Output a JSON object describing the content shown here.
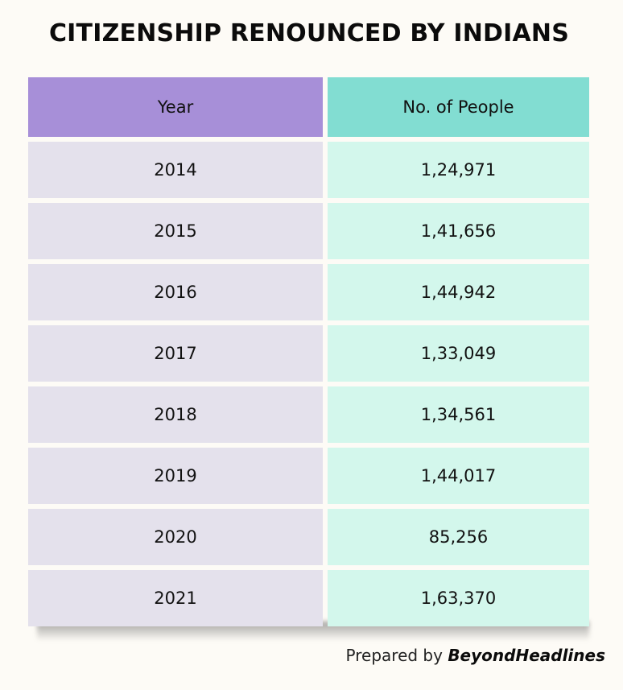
{
  "title": "CITIZENSHIP RENOUNCED BY INDIANS",
  "footer": {
    "prefix": "Prepared by",
    "brand": "BeyondHeadlines"
  },
  "colors": {
    "year_header": "#a78fd8",
    "people_header": "#82ddd2",
    "year_cell": "#e4e1ec",
    "people_cell": "#d3f7ec"
  },
  "chart_data": {
    "type": "table",
    "columns": [
      "Year",
      "No. of People"
    ],
    "rows": [
      [
        "2014",
        "1,24,971"
      ],
      [
        "2015",
        "1,41,656"
      ],
      [
        "2016",
        "1,44,942"
      ],
      [
        "2017",
        "1,33,049"
      ],
      [
        "2018",
        "1,34,561"
      ],
      [
        "2019",
        "1,44,017"
      ],
      [
        "2020",
        "85,256"
      ],
      [
        "2021",
        "1,63,370"
      ]
    ]
  }
}
